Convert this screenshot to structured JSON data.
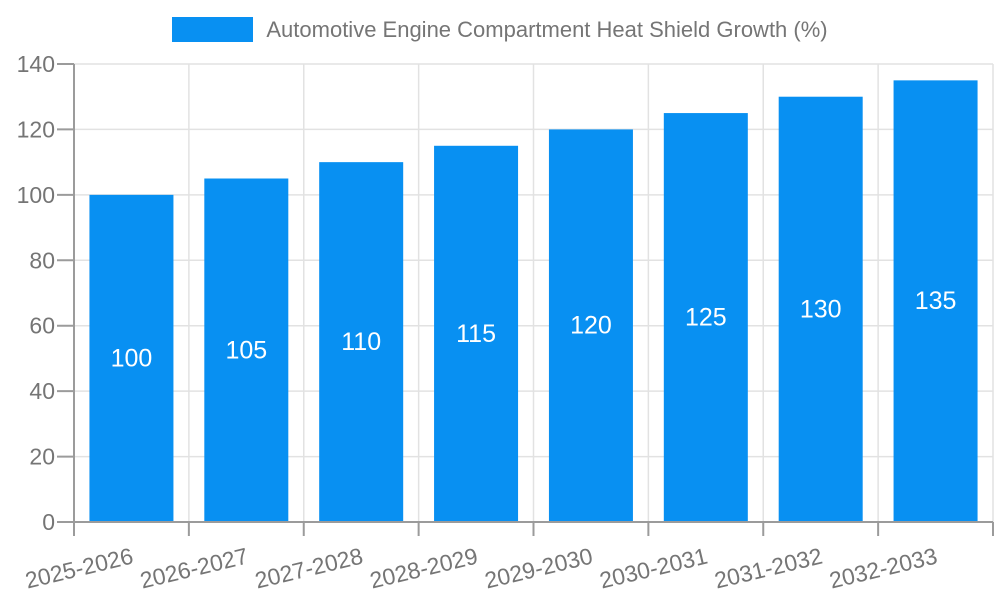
{
  "chart_data": {
    "type": "bar",
    "title": "Automotive Engine Compartment Heat Shield Growth (%)",
    "legend_position": "top",
    "categories": [
      "2025-2026",
      "2026-2027",
      "2027-2028",
      "2028-2029",
      "2029-2030",
      "2030-2031",
      "2031-2032",
      "2032-2033"
    ],
    "series": [
      {
        "name": "Automotive Engine Compartment Heat Shield Growth (%)",
        "values": [
          100,
          105,
          110,
          115,
          120,
          125,
          130,
          135
        ]
      }
    ],
    "value_labels": [
      100,
      105,
      110,
      115,
      120,
      125,
      130,
      135
    ],
    "xlabel": "",
    "ylabel": "",
    "ylim": [
      0,
      140
    ],
    "yticks": [
      0,
      20,
      40,
      60,
      80,
      100,
      120,
      140
    ],
    "grid": true,
    "colors": {
      "bar": "#0890f2",
      "value_label": "#ffffff",
      "axis": "#9b9b9b",
      "grid": "#e2e2e2",
      "text": "#757575"
    }
  }
}
